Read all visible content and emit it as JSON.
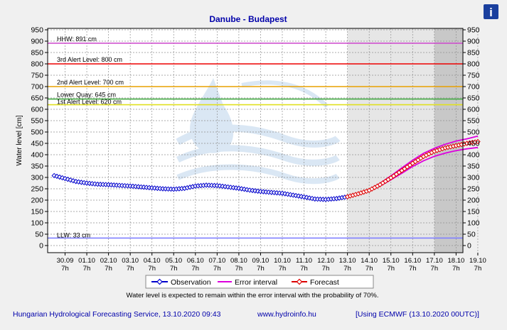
{
  "title": "Danube - Budapest",
  "ylabel": "Water level [cm]",
  "footer": {
    "source": "Hungarian Hydrological Forecasting Service, 13.10.2020 09:43",
    "url": "www.hydroinfo.hu",
    "model": "[Using ECMWF (13.10.2020  00UTC)]"
  },
  "note": "Water level is expected to remain within the error interval with the probability of 70%.",
  "info_button": "i",
  "legend": {
    "observation": "Observation",
    "error_interval": "Error interval",
    "forecast": "Forecast"
  },
  "colors": {
    "observation": "#0000cc",
    "error_interval": "#dd00dd",
    "forecast": "#dd0000",
    "title": "#0000aa",
    "footer": "#0000aa",
    "hhw": "#cc44cc",
    "alert3": "#ee0000",
    "alert2": "#e8a000",
    "lower_quay": "#44aa44",
    "alert1": "#e0e020",
    "llw": "#8080ff"
  },
  "chart_data": {
    "type": "line",
    "title": "Danube - Budapest",
    "ylabel": "Water level [cm]",
    "ylim": [
      -20,
      950
    ],
    "yticks": [
      0,
      50,
      100,
      150,
      200,
      250,
      300,
      350,
      400,
      450,
      500,
      550,
      600,
      650,
      700,
      750,
      800,
      850,
      900,
      950
    ],
    "x_ticks": [
      "30.09",
      "01.10",
      "02.10",
      "03.10",
      "04.10",
      "05.10",
      "06.10",
      "07.10",
      "08.10",
      "09.10",
      "10.10",
      "11.10",
      "12.10",
      "13.10",
      "14.10",
      "15.10",
      "16.10",
      "17.10",
      "18.10",
      "19.10"
    ],
    "x_tick_time": "7h",
    "grid": true,
    "thresholds": [
      {
        "label": "HHW: 891 cm",
        "value": 891,
        "color_key": "hhw"
      },
      {
        "label": "3rd Alert Level: 800 cm",
        "value": 800,
        "color_key": "alert3"
      },
      {
        "label": "2nd Alert Level: 700 cm",
        "value": 700,
        "color_key": "alert2"
      },
      {
        "label": "Lower Quay: 645 cm",
        "value": 645,
        "color_key": "lower_quay"
      },
      {
        "label": "1st Alert Level: 620 cm",
        "value": 620,
        "color_key": "alert1"
      },
      {
        "label": "LLW: 33 cm",
        "value": 33,
        "color_key": "llw"
      }
    ],
    "forecast_shading": [
      {
        "from": "13.10 7h",
        "to": "17.10 7h",
        "shade": "light"
      },
      {
        "from": "17.10 7h",
        "to": "19.10 7h",
        "shade": "dark"
      }
    ],
    "series": [
      {
        "name": "Observation",
        "x": [
          -0.5,
          0,
          0.5,
          1,
          1.5,
          2,
          2.5,
          3,
          3.5,
          4,
          4.5,
          5,
          5.5,
          6,
          6.5,
          7,
          7.5,
          8,
          8.5,
          9,
          9.5,
          10,
          10.5,
          11,
          11.5,
          12,
          12.5,
          13
        ],
        "values": [
          308,
          295,
          282,
          275,
          270,
          268,
          265,
          262,
          258,
          254,
          250,
          248,
          252,
          262,
          266,
          264,
          258,
          252,
          244,
          238,
          234,
          230,
          222,
          214,
          205,
          203,
          207,
          215
        ]
      },
      {
        "name": "Forecast",
        "x": [
          13,
          13.5,
          14,
          14.5,
          15,
          15.5,
          16,
          16.5,
          17,
          17.5,
          18,
          18.5,
          19
        ],
        "values": [
          215,
          228,
          243,
          268,
          298,
          330,
          362,
          392,
          415,
          430,
          440,
          450,
          458
        ]
      },
      {
        "name": "Error interval upper",
        "x": [
          13,
          13.5,
          14,
          14.5,
          15,
          15.5,
          16,
          16.5,
          17,
          17.5,
          18,
          18.5,
          19
        ],
        "values": [
          216,
          230,
          246,
          274,
          307,
          342,
          376,
          406,
          428,
          446,
          460,
          470,
          482
        ]
      },
      {
        "name": "Error interval lower",
        "x": [
          13,
          13.5,
          14,
          14.5,
          15,
          15.5,
          16,
          16.5,
          17,
          17.5,
          18,
          18.5,
          19
        ],
        "values": [
          214,
          226,
          240,
          262,
          290,
          318,
          348,
          373,
          393,
          407,
          418,
          426,
          432
        ]
      }
    ]
  }
}
